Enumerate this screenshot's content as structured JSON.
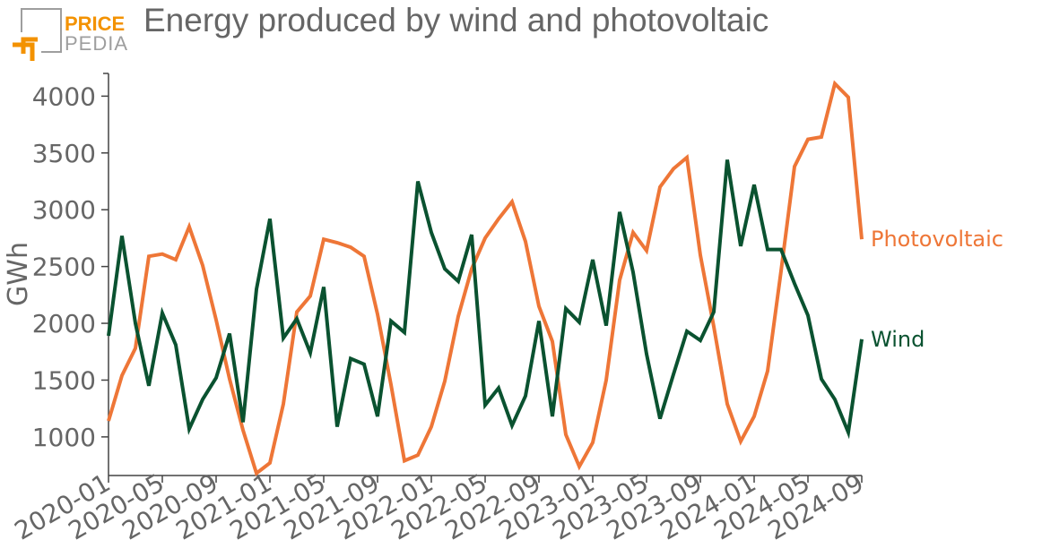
{
  "header": {
    "title": "Energy produced by wind and photovoltaic"
  },
  "logo": {
    "line1": "PRICE",
    "line2": "PEDIA"
  },
  "colors": {
    "photovoltaic": "#ee7637",
    "wind": "#0a5230",
    "axis": "#444444",
    "text": "#666666",
    "logo_orange": "#f39200",
    "logo_gray": "#9e9e9e"
  },
  "chart_data": {
    "type": "line",
    "title": "Energy produced by wind and photovoltaic",
    "xlabel": "",
    "ylabel": "GWh",
    "ylim": [
      660,
      4200
    ],
    "yticks": [
      1000,
      1500,
      2000,
      2500,
      3000,
      3500,
      4000
    ],
    "xtick_labels": [
      "2020-01",
      "2020-05",
      "2020-09",
      "2021-01",
      "2021-05",
      "2021-09",
      "2022-01",
      "2022-05",
      "2022-09",
      "2023-01",
      "2023-05",
      "2023-09",
      "2024-01",
      "2024-05",
      "2024-09"
    ],
    "grid": false,
    "legend": "inline labels at line ends",
    "x": [
      "2020-01",
      "2020-02",
      "2020-03",
      "2020-04",
      "2020-05",
      "2020-06",
      "2020-07",
      "2020-08",
      "2020-09",
      "2020-10",
      "2020-11",
      "2020-12",
      "2021-01",
      "2021-02",
      "2021-03",
      "2021-04",
      "2021-05",
      "2021-06",
      "2021-07",
      "2021-08",
      "2021-09",
      "2021-10",
      "2021-11",
      "2021-12",
      "2022-01",
      "2022-02",
      "2022-03",
      "2022-04",
      "2022-05",
      "2022-06",
      "2022-07",
      "2022-08",
      "2022-09",
      "2022-10",
      "2022-11",
      "2022-12",
      "2023-01",
      "2023-02",
      "2023-03",
      "2023-04",
      "2023-05",
      "2023-06",
      "2023-07",
      "2023-08",
      "2023-09",
      "2023-10",
      "2023-11",
      "2023-12",
      "2024-01",
      "2024-02",
      "2024-03",
      "2024-04",
      "2024-05",
      "2024-06",
      "2024-07",
      "2024-08",
      "2024-09"
    ],
    "series": [
      {
        "name": "Photovoltaic",
        "color": "#ee7637",
        "values": [
          1140,
          1540,
          1780,
          2590,
          2610,
          2560,
          2850,
          2510,
          2030,
          1510,
          1060,
          680,
          770,
          1290,
          2100,
          2240,
          2740,
          2710,
          2670,
          2590,
          2080,
          1460,
          790,
          840,
          1090,
          1490,
          2060,
          2480,
          2750,
          2920,
          3070,
          2720,
          2150,
          1840,
          1020,
          740,
          950,
          1500,
          2380,
          2800,
          2640,
          3200,
          3360,
          3460,
          2600,
          1970,
          1290,
          960,
          1180,
          1580,
          2460,
          3380,
          3620,
          3640,
          4110,
          3990,
          2740
        ]
      },
      {
        "name": "Wind",
        "color": "#0a5230",
        "values": [
          1890,
          2770,
          2000,
          1450,
          2090,
          1810,
          1070,
          1330,
          1520,
          1910,
          1130,
          2300,
          2920,
          1870,
          2040,
          1740,
          2320,
          1090,
          1690,
          1640,
          1180,
          2020,
          1920,
          3250,
          2800,
          2480,
          2370,
          2780,
          1280,
          1430,
          1100,
          1360,
          2020,
          1180,
          2130,
          2010,
          2560,
          1980,
          2980,
          2450,
          1730,
          1160,
          1550,
          1930,
          1850,
          2100,
          3440,
          2680,
          3220,
          2650,
          2650,
          2350,
          2070,
          1510,
          1330,
          1040,
          1860
        ]
      }
    ]
  }
}
